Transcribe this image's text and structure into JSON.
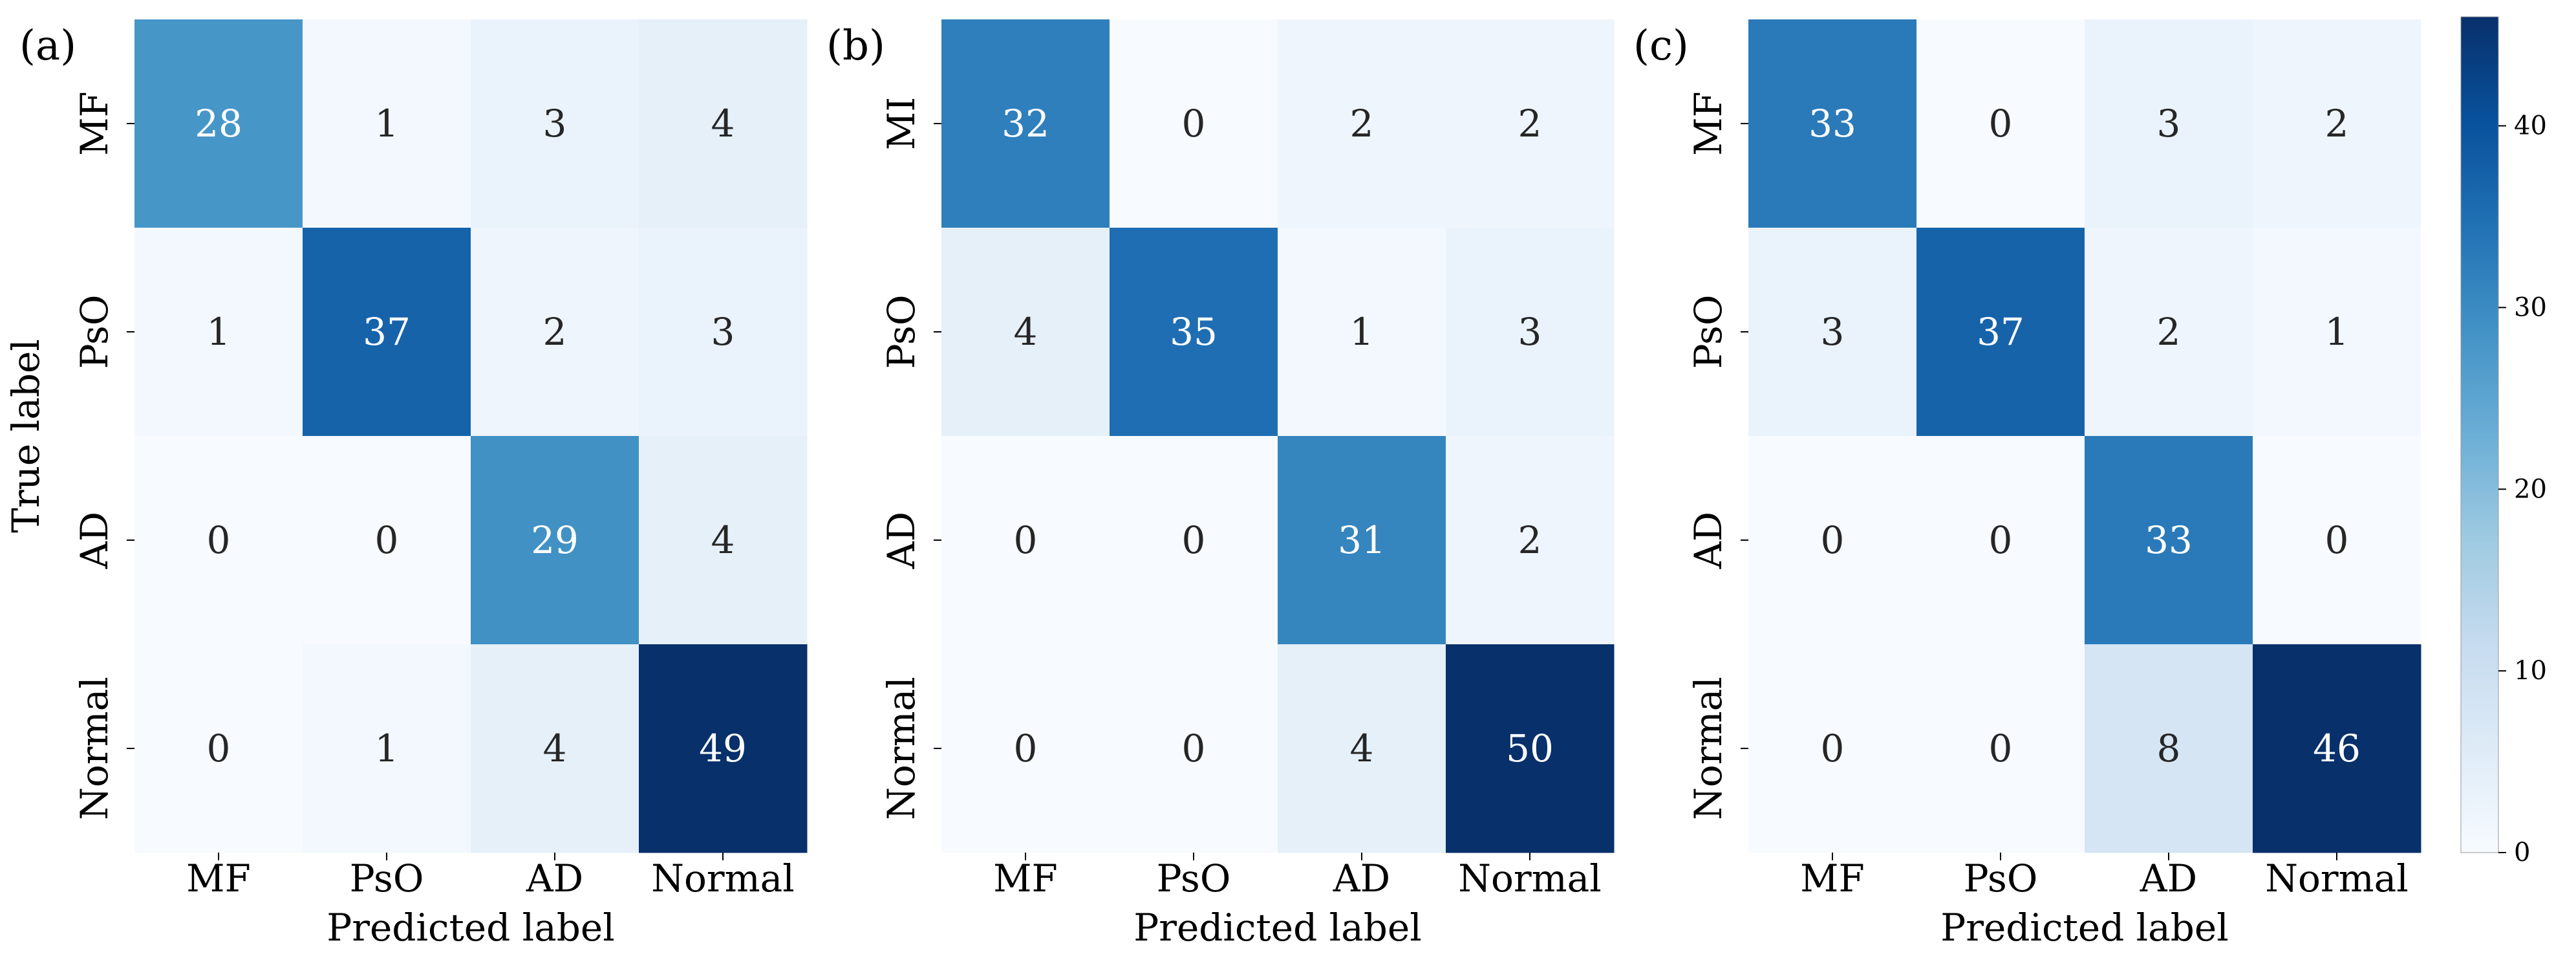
{
  "chart_data": [
    {
      "type": "heatmap",
      "panel_label": "(a)",
      "row_labels": [
        "MF",
        "PsO",
        "AD",
        "Normal"
      ],
      "col_labels": [
        "MF",
        "PsO",
        "AD",
        "Normal"
      ],
      "xlabel": "Predicted label",
      "ylabel": "True label",
      "values": [
        [
          28,
          1,
          3,
          4
        ],
        [
          1,
          37,
          2,
          3
        ],
        [
          0,
          0,
          29,
          4
        ],
        [
          0,
          1,
          4,
          49
        ]
      ]
    },
    {
      "type": "heatmap",
      "panel_label": "(b)",
      "row_labels": [
        "MI",
        "PsO",
        "AD",
        "Normal"
      ],
      "col_labels": [
        "MF",
        "PsO",
        "AD",
        "Normal"
      ],
      "xlabel": "Predicted label",
      "ylabel": "",
      "values": [
        [
          32,
          0,
          2,
          2
        ],
        [
          4,
          35,
          1,
          3
        ],
        [
          0,
          0,
          31,
          2
        ],
        [
          0,
          0,
          4,
          50
        ]
      ]
    },
    {
      "type": "heatmap",
      "panel_label": "(c)",
      "row_labels": [
        "MF",
        "PsO",
        "AD",
        "Normal"
      ],
      "col_labels": [
        "MF",
        "PsO",
        "AD",
        "Normal"
      ],
      "xlabel": "Predicted label",
      "ylabel": "",
      "values": [
        [
          33,
          0,
          3,
          2
        ],
        [
          3,
          37,
          2,
          1
        ],
        [
          0,
          0,
          33,
          0
        ],
        [
          0,
          0,
          8,
          46
        ]
      ]
    }
  ],
  "colorbar": {
    "min": 0,
    "max": 46,
    "ticks": [
      "0",
      "10",
      "20",
      "30",
      "40"
    ],
    "colormap": "Blues"
  }
}
